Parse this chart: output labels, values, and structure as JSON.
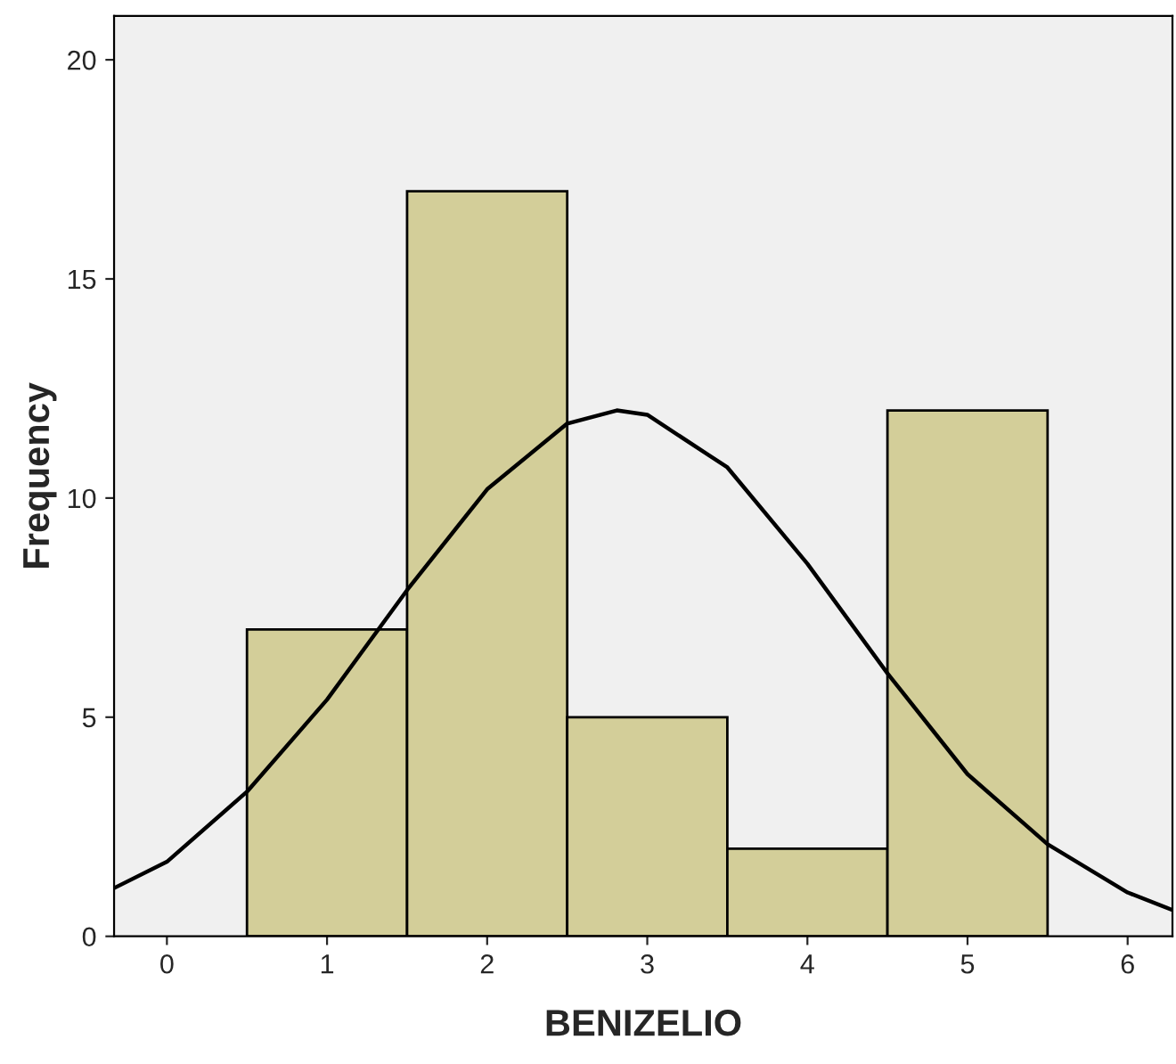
{
  "chart_data": {
    "type": "histogram",
    "xlabel": "BENIZELIO",
    "ylabel": "Frequency",
    "bins": [
      0.5,
      1.5,
      2.5,
      3.5,
      4.5,
      5.5
    ],
    "values": [
      7,
      17,
      5,
      2,
      12
    ],
    "color": "#d3ce99",
    "series": [
      {
        "type": "line",
        "color": "#000000",
        "x": [
          -0.33,
          0,
          0.5,
          1,
          1.5,
          2,
          2.5,
          2.81,
          3,
          3.5,
          4,
          4.5,
          5,
          5.5,
          6,
          6.28
        ],
        "values": [
          1.1,
          1.7,
          3.3,
          5.4,
          7.9,
          10.2,
          11.7,
          12,
          11.9,
          10.7,
          8.5,
          6,
          3.7,
          2.1,
          1,
          0.6
        ]
      }
    ],
    "xlim": [
      -0.33,
      6.28
    ],
    "xticks": [
      0,
      1,
      2,
      3,
      4,
      5,
      6
    ],
    "ylim": [
      0,
      21
    ],
    "yticks": [
      0,
      5,
      10,
      15,
      20
    ],
    "grid": false,
    "legend": false
  }
}
